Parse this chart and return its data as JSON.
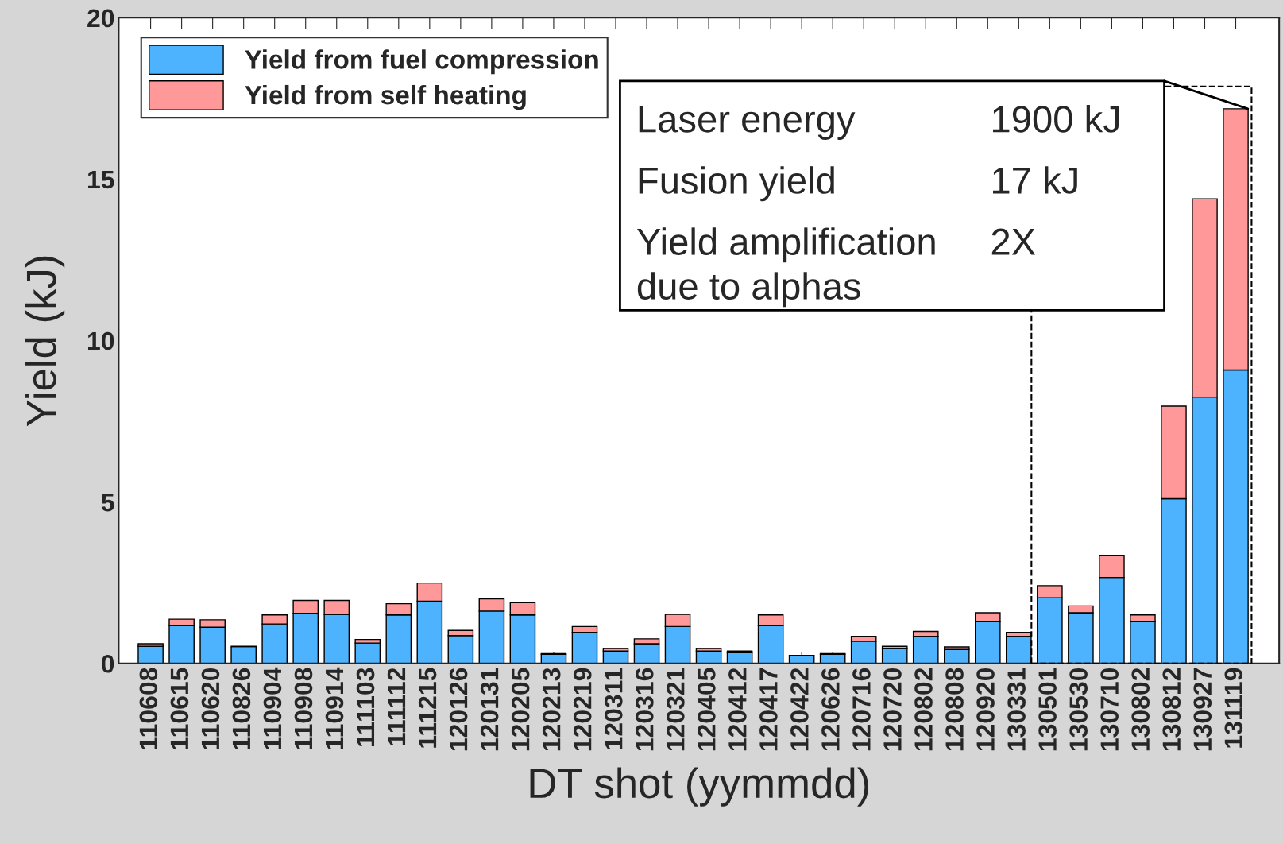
{
  "chart_data": {
    "type": "bar",
    "stacked": true,
    "xlabel": "DT shot (yymmdd)",
    "ylabel": "Yield (kJ)",
    "categories": [
      "110608",
      "110615",
      "110620",
      "110826",
      "110904",
      "110908",
      "110914",
      "111103",
      "111112",
      "111215",
      "120126",
      "120131",
      "120205",
      "120213",
      "120219",
      "120311",
      "120316",
      "120321",
      "120405",
      "120412",
      "120417",
      "120422",
      "120626",
      "120716",
      "120720",
      "120802",
      "120808",
      "120920",
      "130331",
      "130501",
      "130530",
      "130710",
      "130802",
      "130812",
      "130927",
      "131119"
    ],
    "series": [
      {
        "name": "Yield from fuel compression",
        "color": "#4db3ff",
        "values": [
          0.53,
          1.17,
          1.12,
          0.48,
          1.22,
          1.55,
          1.52,
          0.63,
          1.5,
          1.93,
          0.86,
          1.62,
          1.5,
          0.28,
          0.96,
          0.38,
          0.61,
          1.14,
          0.38,
          0.33,
          1.17,
          0.23,
          0.28,
          0.69,
          0.46,
          0.84,
          0.43,
          1.29,
          0.84,
          2.03,
          1.57,
          2.66,
          1.29,
          5.1,
          8.25,
          9.09
        ]
      },
      {
        "name": "Yield from self heating",
        "color": "#ff9999",
        "values": [
          0.08,
          0.2,
          0.23,
          0.05,
          0.28,
          0.4,
          0.43,
          0.11,
          0.35,
          0.56,
          0.16,
          0.38,
          0.38,
          0.02,
          0.18,
          0.08,
          0.15,
          0.38,
          0.08,
          0.05,
          0.33,
          0.02,
          0.02,
          0.15,
          0.07,
          0.15,
          0.08,
          0.28,
          0.12,
          0.38,
          0.21,
          0.69,
          0.21,
          2.87,
          6.14,
          8.09
        ]
      }
    ],
    "ylim": [
      0,
      20
    ],
    "yticks": [
      0,
      5,
      10,
      15,
      20
    ],
    "grid": false,
    "legend": "top left",
    "annotations": [
      "Laser energy",
      "1900 kJ",
      "Fusion yield",
      "17 kJ",
      "Yield amplification\ndue to alphas",
      "2X"
    ]
  }
}
